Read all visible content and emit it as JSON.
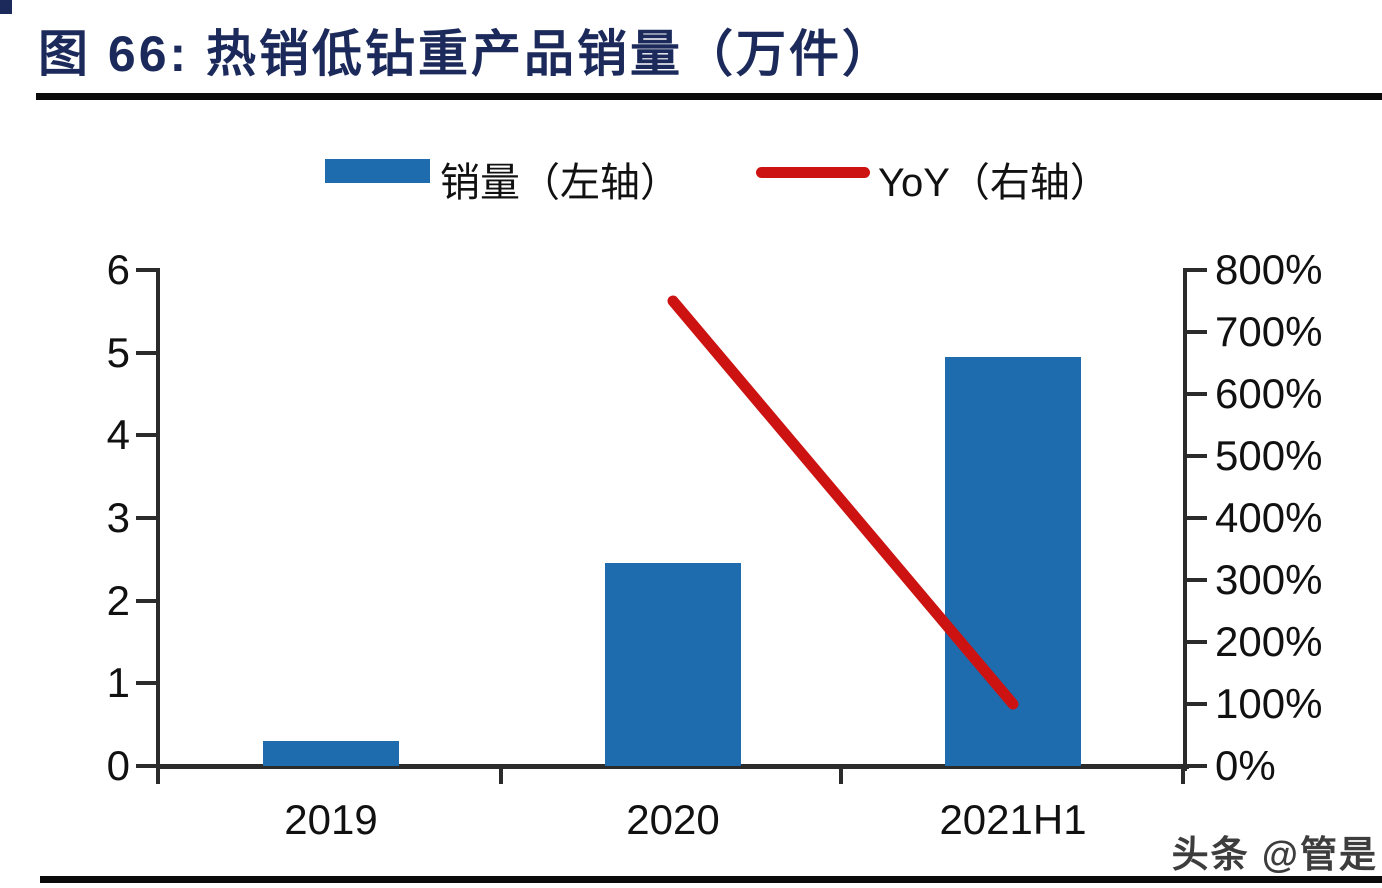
{
  "title": "图 66:  热销低钻重产品销量（万件）",
  "legend": {
    "sales_label": "销量（左轴）",
    "yoy_label": "YoY（右轴）"
  },
  "watermark": "头条 @管是",
  "colors": {
    "bar_blue": "#1e6bad",
    "line_red": "#cd1212",
    "title_navy": "#1b2a5b",
    "axis_black": "#2b2b2b"
  },
  "chart_data": {
    "type": "bar",
    "title": "热销低钻重产品销量（万件）",
    "categories": [
      "2019",
      "2020",
      "2021H1"
    ],
    "series": [
      {
        "name": "销量（左轴）",
        "type": "bar",
        "axis": "left",
        "unit": "万件",
        "values": [
          0.3,
          2.45,
          4.95
        ]
      },
      {
        "name": "YoY（右轴）",
        "type": "line",
        "axis": "right",
        "unit": "%",
        "values": [
          null,
          750,
          100
        ]
      }
    ],
    "left_axis": {
      "min": 0,
      "max": 6,
      "step": 1,
      "ticks": [
        "0",
        "1",
        "2",
        "3",
        "4",
        "5",
        "6"
      ]
    },
    "right_axis": {
      "min": 0,
      "max": 800,
      "step": 100,
      "ticks": [
        "0%",
        "100%",
        "200%",
        "300%",
        "400%",
        "500%",
        "600%",
        "700%",
        "800%"
      ]
    },
    "grid": false,
    "legend_position": "top"
  }
}
